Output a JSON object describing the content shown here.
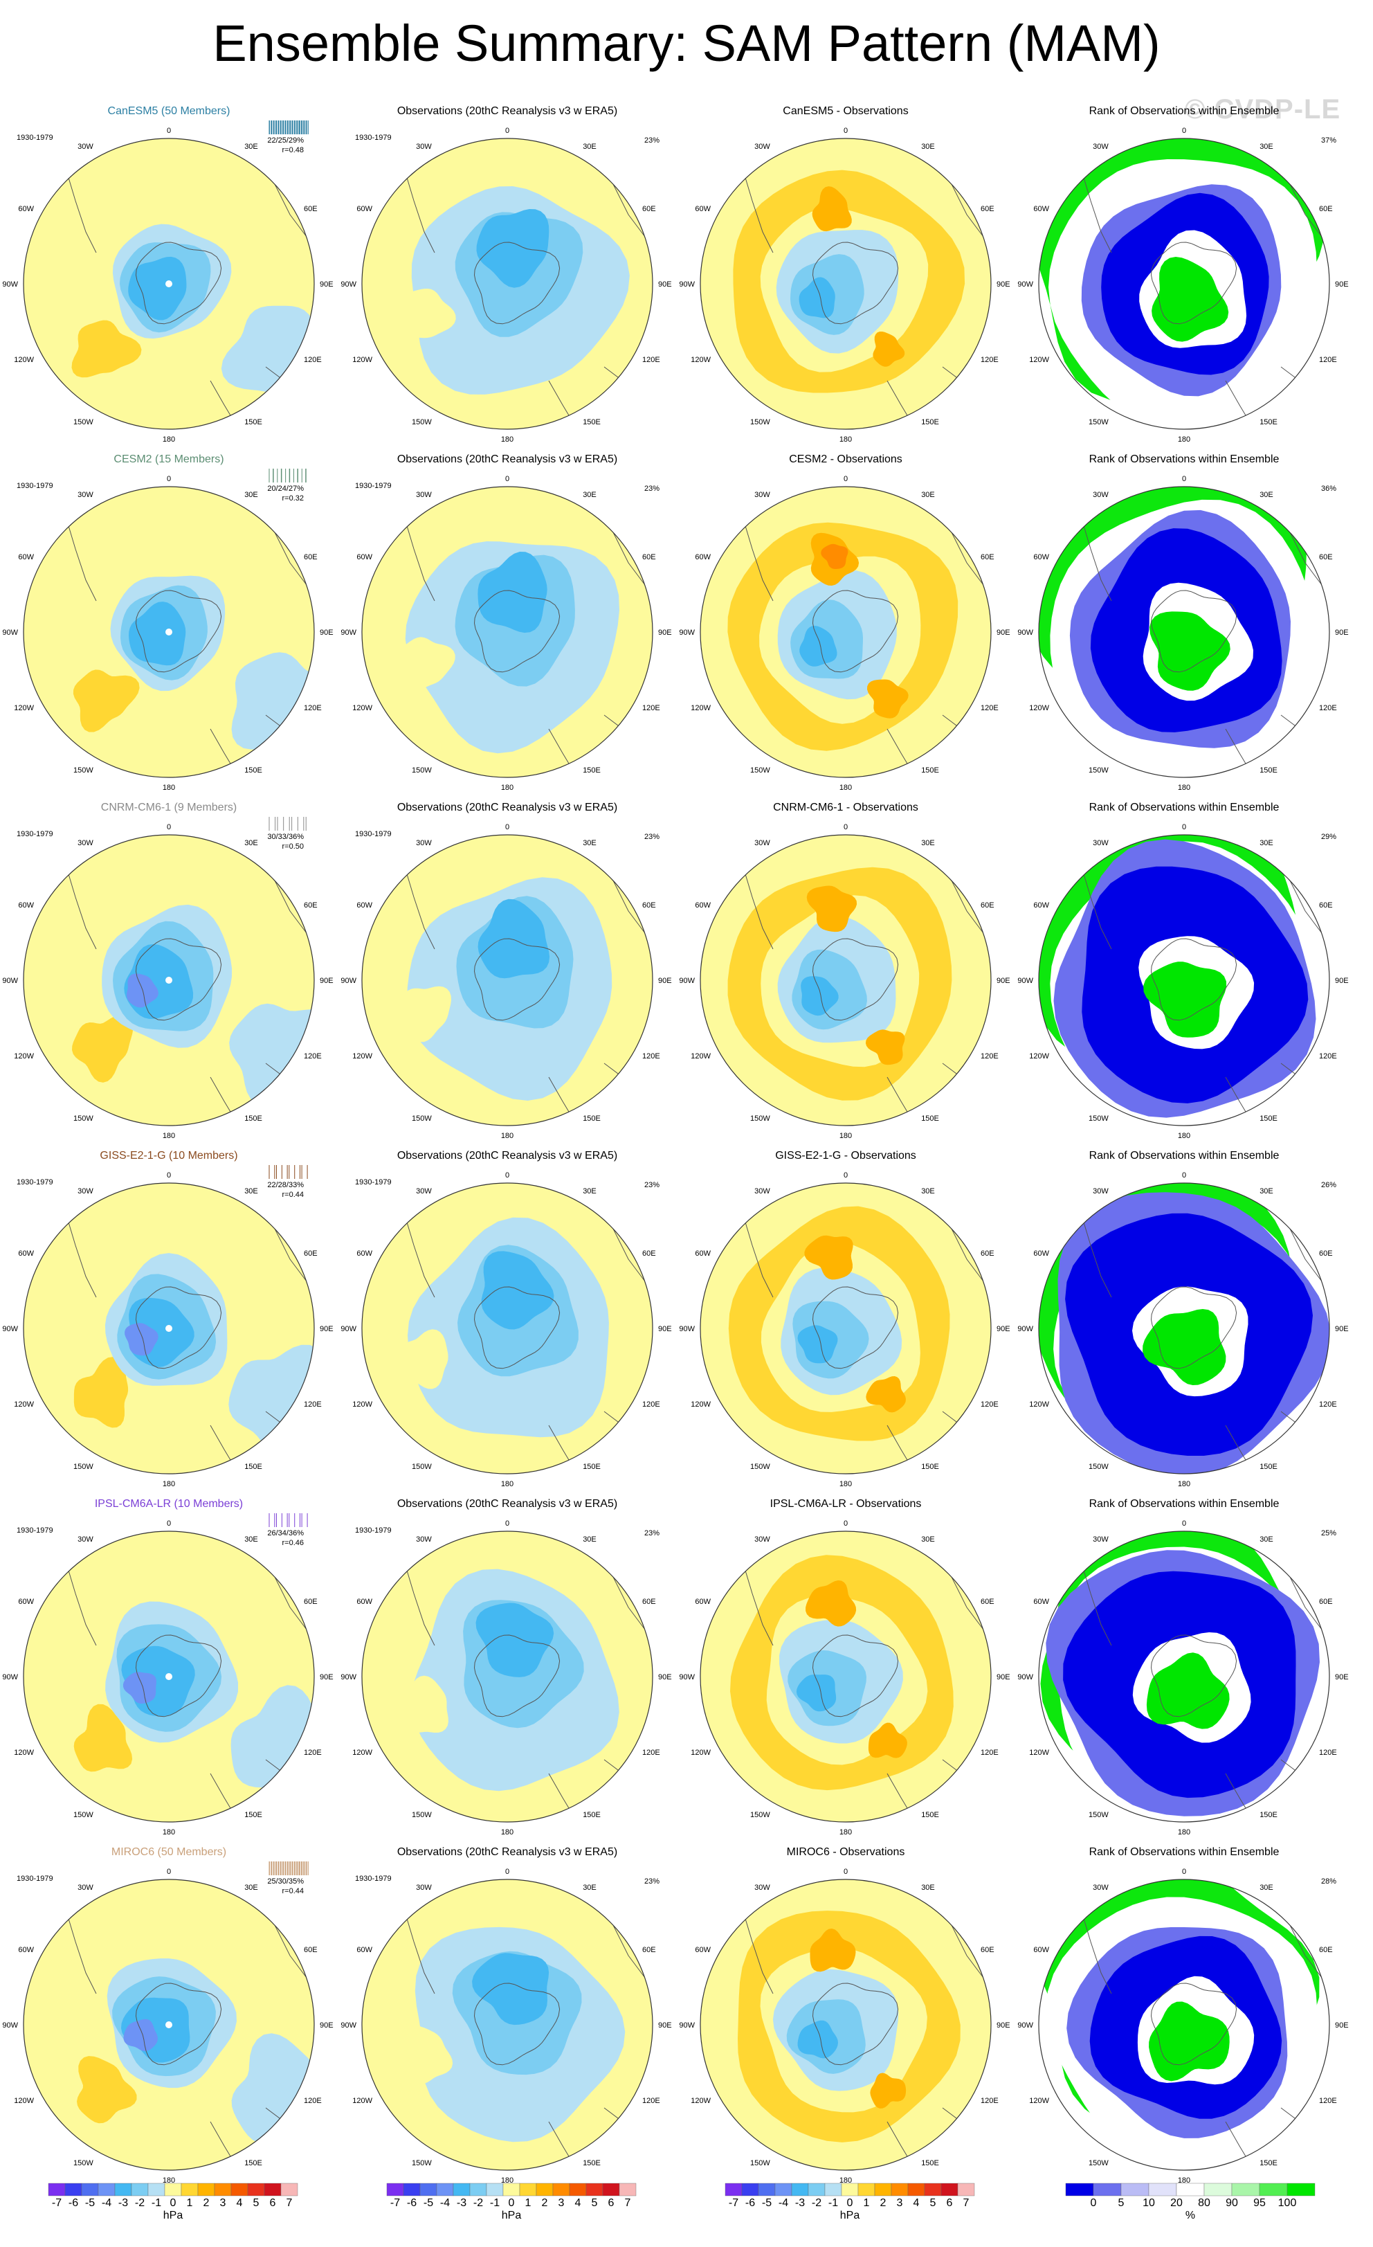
{
  "title": "Ensemble Summary: SAM Pattern (MAM)",
  "watermark": "© CVDP-LE",
  "colors": {
    "anom_levels": [
      "#7a2ff0",
      "#3a3ff0",
      "#4f6ff0",
      "#6d93f5",
      "#44b8f2",
      "#7ccdf2",
      "#b6e0f4",
      "#fdfa9c",
      "#ffd733",
      "#ffb400",
      "#ff8c00",
      "#f55a00",
      "#e8321d",
      "#d0141e",
      "#f7b7b7"
    ],
    "rank_levels": [
      "#0000e6",
      "#6c70ee",
      "#babcf5",
      "#e1e2fa",
      "#ffffff",
      "#dcfbdc",
      "#a9f5a9",
      "#52ee52",
      "#00e600"
    ],
    "model_title_colors": {
      "CanESM5": "#2c7fa3",
      "CESM2": "#5b8d72",
      "CNRM-CM6-1": "#8a8a8a",
      "GISS-E2-1-G": "#8a4a1e",
      "IPSL-CM6A-LR": "#7b3fd6",
      "MIROC6": "#c9a07a"
    }
  },
  "map_labels": {
    "top": "0",
    "bottom": "180",
    "upper_left": "30W",
    "upper_right": "30E",
    "left_upper": "60W",
    "right_upper": "60E",
    "left": "90W",
    "right": "90E",
    "left_lower": "120W",
    "right_lower": "120E",
    "lower_left": "150W",
    "lower_right": "150E"
  },
  "rows": [
    {
      "model": "CanESM5",
      "members": "50",
      "model_title": "CanESM5 (50 Members)",
      "period": "1930-1979",
      "pcts": "22/25/29%",
      "r": "r=0.48",
      "obs_title": "Observations (20thC Reanalysis v3 w ERA5)",
      "obs_pct": "23%",
      "diff_title": "CanESM5 - Observations",
      "rank_title": "Rank of Observations within Ensemble",
      "rank_pct": "37%",
      "strength": {
        "ens": 0.85,
        "diff": 0.75,
        "rank": 0.7
      }
    },
    {
      "model": "CESM2",
      "members": "15",
      "model_title": "CESM2 (15 Members)",
      "period": "1930-1979",
      "pcts": "20/24/27%",
      "r": "r=0.32",
      "obs_title": "Observations (20thC Reanalysis v3 w ERA5)",
      "obs_pct": "23%",
      "diff_title": "CESM2 - Observations",
      "rank_title": "Rank of Observations within Ensemble",
      "rank_pct": "36%",
      "strength": {
        "ens": 0.85,
        "diff": 0.9,
        "rank": 0.8
      }
    },
    {
      "model": "CNRM-CM6-1",
      "members": "9",
      "model_title": "CNRM-CM6-1 (9 Members)",
      "period": "1930-1979",
      "pcts": "30/33/36%",
      "r": "r=0.50",
      "obs_title": "Observations (20thC Reanalysis v3 w ERA5)",
      "obs_pct": "23%",
      "diff_title": "CNRM-CM6-1 - Observations",
      "rank_title": "Rank of Observations within Ensemble",
      "rank_pct": "29%",
      "strength": {
        "ens": 1.0,
        "diff": 0.85,
        "rank": 0.95
      }
    },
    {
      "model": "GISS-E2-1-G",
      "members": "10",
      "model_title": "GISS-E2-1-G (10 Members)",
      "period": "1930-1979",
      "pcts": "22/28/33%",
      "r": "r=0.44",
      "obs_title": "Observations (20thC Reanalysis v3 w ERA5)",
      "obs_pct": "23%",
      "diff_title": "GISS-E2-1-G - Observations",
      "rank_title": "Rank of Observations within Ensemble",
      "rank_pct": "26%",
      "strength": {
        "ens": 0.95,
        "diff": 0.85,
        "rank": 1.0
      }
    },
    {
      "model": "IPSL-CM6A-LR",
      "members": "10",
      "model_title": "IPSL-CM6A-LR (10 Members)",
      "period": "1930-1979",
      "pcts": "26/34/36%",
      "r": "r=0.46",
      "obs_title": "Observations (20thC Reanalysis v3 w ERA5)",
      "obs_pct": "23%",
      "diff_title": "IPSL-CM6A-LR - Observations",
      "rank_title": "Rank of Observations within Ensemble",
      "rank_pct": "25%",
      "strength": {
        "ens": 1.0,
        "diff": 0.85,
        "rank": 0.95
      }
    },
    {
      "model": "MIROC6",
      "members": "50",
      "model_title": "MIROC6 (50 Members)",
      "period": "1930-1979",
      "pcts": "25/30/35%",
      "r": "r=0.44",
      "obs_title": "Observations (20thC Reanalysis v3 w ERA5)",
      "obs_pct": "23%",
      "diff_title": "MIROC6 - Observations",
      "rank_title": "Rank of Observations within Ensemble",
      "rank_pct": "28%",
      "strength": {
        "ens": 0.95,
        "diff": 0.8,
        "rank": 0.75
      }
    }
  ],
  "colorbars": {
    "anom": {
      "ticks": [
        "-7",
        "-6",
        "-5",
        "-4",
        "-3",
        "-2",
        "-1",
        "0",
        "1",
        "2",
        "3",
        "4",
        "5",
        "6",
        "7"
      ],
      "unit": "hPa"
    },
    "rank": {
      "ticks": [
        "0",
        "5",
        "10",
        "20",
        "80",
        "90",
        "95",
        "100"
      ],
      "unit": "%"
    }
  }
}
